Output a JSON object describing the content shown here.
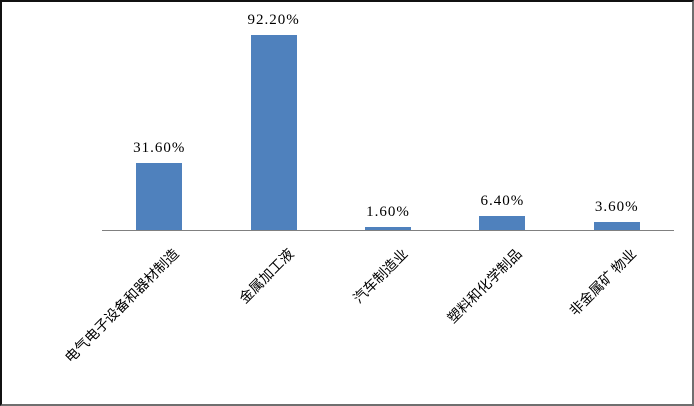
{
  "chart_data": {
    "type": "bar",
    "categories": [
      "电气电子设备和器材制造",
      "金属加工液",
      "汽车制造业",
      "塑料和化学制品",
      "非金属矿 物业"
    ],
    "values": [
      31.6,
      92.2,
      1.6,
      6.4,
      3.6
    ],
    "value_labels": [
      "31.60%",
      "92.20%",
      "1.60%",
      "6.40%",
      "3.60%"
    ],
    "title": "",
    "xlabel": "",
    "ylabel": "",
    "ylim": [
      0,
      100
    ],
    "grid": false,
    "legend": false,
    "bar_color": "#4F81BD",
    "axis_color": "#808080",
    "text_color": "#000000",
    "background_color": "#FFFFFF",
    "category_label_rotation_deg": -45
  }
}
